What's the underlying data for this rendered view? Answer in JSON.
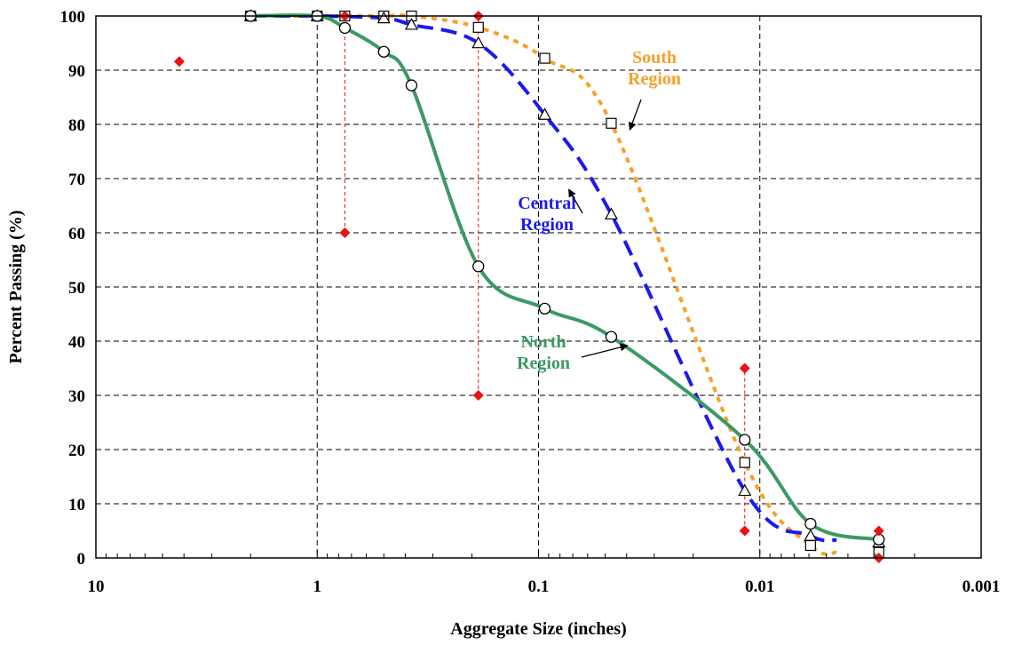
{
  "chart_data": {
    "type": "line",
    "xlabel": "Aggregate Size (inches)",
    "ylabel": "Percent Passing (%)",
    "x_scale": "log",
    "x_reversed": true,
    "xlim": [
      10,
      0.001
    ],
    "ylim": [
      0,
      100
    ],
    "x_ticks": [
      10,
      1,
      0.1,
      0.01,
      0.001
    ],
    "x_tick_labels": [
      "10",
      "1",
      "0.1",
      "0.01",
      "0.001"
    ],
    "y_ticks": [
      0,
      10,
      20,
      30,
      40,
      50,
      60,
      70,
      80,
      90,
      100
    ],
    "grid": true,
    "series": [
      {
        "name": "North Region",
        "color": "#3a9a64",
        "dash": "solid",
        "marker": "circle",
        "x": [
          2,
          1,
          0.75,
          0.5,
          0.375,
          0.187,
          0.0937,
          0.0469,
          0.0117,
          0.0059,
          0.0029
        ],
        "y": [
          100,
          100,
          97.8,
          93.4,
          87.2,
          53.8,
          46.0,
          40.8,
          21.8,
          6.3,
          3.4
        ]
      },
      {
        "name": "Central Region",
        "color": "#1a1aee",
        "dash": "dash",
        "marker": "triangle",
        "x": [
          2,
          1,
          0.5,
          0.375,
          0.187,
          0.0937,
          0.0469,
          0.0117,
          0.0059,
          0.0029
        ],
        "y": [
          100,
          100,
          99.6,
          98.4,
          95.0,
          81.8,
          63.4,
          12.4,
          4.1,
          2.9
        ],
        "line_end_x": 0.0045,
        "line_end_y": 3.3
      },
      {
        "name": "South Region",
        "color": "#f7a128",
        "dash": "dot",
        "marker": "square",
        "x": [
          2,
          1,
          0.75,
          0.5,
          0.375,
          0.187,
          0.0937,
          0.0469,
          0.0117,
          0.0059,
          0.0029
        ],
        "y": [
          100,
          100,
          100,
          100,
          100,
          97.9,
          92.2,
          80.2,
          17.6,
          2.3,
          1.0
        ],
        "line_end_x": 0.0045,
        "line_end_y": 1.0
      }
    ],
    "control_points": {
      "color": "#ee1111",
      "marker": "diamond",
      "ranges": [
        {
          "x": 0.75,
          "min": 60,
          "max": 100
        },
        {
          "x": 0.187,
          "min": 30,
          "max": 100
        },
        {
          "x": 0.0117,
          "min": 5,
          "max": 35
        }
      ],
      "points": [
        {
          "x": 4.2,
          "y": 91.6
        },
        {
          "x": 0.75,
          "y": 100
        },
        {
          "x": 0.75,
          "y": 60
        },
        {
          "x": 0.187,
          "y": 100
        },
        {
          "x": 0.187,
          "y": 30
        },
        {
          "x": 0.0117,
          "y": 35
        },
        {
          "x": 0.0117,
          "y": 5
        },
        {
          "x": 0.0029,
          "y": 5
        },
        {
          "x": 0.0029,
          "y": 0
        }
      ]
    },
    "annotations": [
      {
        "series": "South Region",
        "lines": [
          "South",
          "Region"
        ],
        "color": "#f7a128",
        "arrow_to": [
          0.0387,
          79
        ]
      },
      {
        "series": "Central Region",
        "lines": [
          "Central",
          "Region"
        ],
        "color": "#1a1aee",
        "arrow_to": [
          0.073,
          68
        ]
      },
      {
        "series": "North Region",
        "lines": [
          "North",
          "Region"
        ],
        "color": "#3a9a64",
        "arrow_to": [
          0.0396,
          39.2
        ]
      }
    ]
  }
}
